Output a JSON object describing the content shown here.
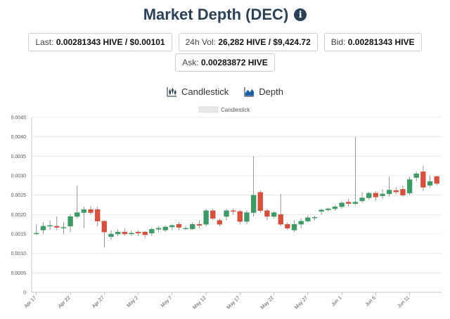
{
  "header": {
    "title": "Market Depth (DEC)",
    "info_icon": "info-circle-icon"
  },
  "stats": {
    "last_label": "Last:",
    "last_value": "0.00281343 HIVE / $0.00101",
    "vol_label": "24h Vol:",
    "vol_value": "26,282 HIVE / $9,424.72",
    "bid_label": "Bid:",
    "bid_value": "0.00281343 HIVE",
    "ask_label": "Ask:",
    "ask_value": "0.00283872 HIVE"
  },
  "chart_tabs": [
    {
      "label": "Candlestick",
      "icon": "candlestick-chart-icon"
    },
    {
      "label": "Depth",
      "icon": "area-chart-icon"
    }
  ],
  "colors": {
    "up": "#3e9a64",
    "down": "#d5503d",
    "grid": "#e6e6e6",
    "title": "#2d4156"
  },
  "chart_data": {
    "type": "candlestick",
    "legend": "Candlestick",
    "ylim": [
      0,
      0.0045
    ],
    "y_ticks": [
      "0",
      "0.0005",
      "0.0010",
      "0.0015",
      "0.0020",
      "0.0025",
      "0.0030",
      "0.0035",
      "0.0040",
      "0.0045"
    ],
    "x_ticks": [
      "Apr 17",
      "Apr 22",
      "Apr 27",
      "May 2",
      "May 7",
      "May 12",
      "May 17",
      "May 22",
      "May 27",
      "Jun 1",
      "Jun 6",
      "Jun 11"
    ],
    "candles": [
      {
        "o": 0.00152,
        "c": 0.00152,
        "h": 0.00175,
        "l": 0.00148
      },
      {
        "o": 0.0016,
        "c": 0.0017,
        "h": 0.0018,
        "l": 0.0015
      },
      {
        "o": 0.0017,
        "c": 0.00172,
        "h": 0.00185,
        "l": 0.0016
      },
      {
        "o": 0.0017,
        "c": 0.00167,
        "h": 0.00195,
        "l": 0.0016
      },
      {
        "o": 0.00167,
        "c": 0.00167,
        "h": 0.0018,
        "l": 0.0015
      },
      {
        "o": 0.0017,
        "c": 0.00195,
        "h": 0.002,
        "l": 0.00155
      },
      {
        "o": 0.00195,
        "c": 0.00205,
        "h": 0.00275,
        "l": 0.0019
      },
      {
        "o": 0.00205,
        "c": 0.00213,
        "h": 0.0022,
        "l": 0.00165
      },
      {
        "o": 0.00213,
        "c": 0.00205,
        "h": 0.00222,
        "l": 0.002
      },
      {
        "o": 0.00213,
        "c": 0.00183,
        "h": 0.0022,
        "l": 0.0017
      },
      {
        "o": 0.00183,
        "c": 0.00155,
        "h": 0.00185,
        "l": 0.00115
      },
      {
        "o": 0.00143,
        "c": 0.0015,
        "h": 0.0016,
        "l": 0.00135
      },
      {
        "o": 0.0015,
        "c": 0.00155,
        "h": 0.00162,
        "l": 0.00145
      },
      {
        "o": 0.00155,
        "c": 0.0015,
        "h": 0.00165,
        "l": 0.00145
      },
      {
        "o": 0.0015,
        "c": 0.00152,
        "h": 0.0016,
        "l": 0.00145
      },
      {
        "o": 0.00155,
        "c": 0.00152,
        "h": 0.0016,
        "l": 0.00145
      },
      {
        "o": 0.00155,
        "c": 0.00148,
        "h": 0.00158,
        "l": 0.0014
      },
      {
        "o": 0.00152,
        "c": 0.00162,
        "h": 0.00167,
        "l": 0.00145
      },
      {
        "o": 0.00162,
        "c": 0.00165,
        "h": 0.0017,
        "l": 0.00155
      },
      {
        "o": 0.0016,
        "c": 0.00168,
        "h": 0.00172,
        "l": 0.00155
      },
      {
        "o": 0.00168,
        "c": 0.00172,
        "h": 0.00175,
        "l": 0.0016
      },
      {
        "o": 0.00175,
        "c": 0.00167,
        "h": 0.0018,
        "l": 0.0016
      },
      {
        "o": 0.00165,
        "c": 0.00165,
        "h": 0.0017,
        "l": 0.0016
      },
      {
        "o": 0.00163,
        "c": 0.00175,
        "h": 0.0018,
        "l": 0.0016
      },
      {
        "o": 0.00175,
        "c": 0.00172,
        "h": 0.00185,
        "l": 0.00165
      },
      {
        "o": 0.00175,
        "c": 0.0021,
        "h": 0.00215,
        "l": 0.0017
      },
      {
        "o": 0.0021,
        "c": 0.0019,
        "h": 0.00215,
        "l": 0.00185
      },
      {
        "o": 0.00185,
        "c": 0.00175,
        "h": 0.0019,
        "l": 0.0017
      },
      {
        "o": 0.00195,
        "c": 0.0021,
        "h": 0.00215,
        "l": 0.00185
      },
      {
        "o": 0.0021,
        "c": 0.00208,
        "h": 0.00215,
        "l": 0.002
      },
      {
        "o": 0.00208,
        "c": 0.00182,
        "h": 0.00212,
        "l": 0.00175
      },
      {
        "o": 0.00182,
        "c": 0.00205,
        "h": 0.0021,
        "l": 0.00175
      },
      {
        "o": 0.00205,
        "c": 0.0025,
        "h": 0.0035,
        "l": 0.00195
      },
      {
        "o": 0.00257,
        "c": 0.0021,
        "h": 0.00262,
        "l": 0.00205
      },
      {
        "o": 0.0021,
        "c": 0.00195,
        "h": 0.00215,
        "l": 0.00185
      },
      {
        "o": 0.00195,
        "c": 0.00205,
        "h": 0.00208,
        "l": 0.0019
      },
      {
        "o": 0.002,
        "c": 0.00175,
        "h": 0.00253,
        "l": 0.0017
      },
      {
        "o": 0.00175,
        "c": 0.00165,
        "h": 0.0018,
        "l": 0.0016
      },
      {
        "o": 0.0016,
        "c": 0.00175,
        "h": 0.00185,
        "l": 0.00155
      },
      {
        "o": 0.00175,
        "c": 0.00183,
        "h": 0.0019,
        "l": 0.00165
      },
      {
        "o": 0.00183,
        "c": 0.00192,
        "h": 0.00198,
        "l": 0.0018
      },
      {
        "o": 0.00192,
        "c": 0.00193,
        "h": 0.00197,
        "l": 0.00185
      },
      {
        "o": 0.00208,
        "c": 0.00212,
        "h": 0.00215,
        "l": 0.002
      },
      {
        "o": 0.00212,
        "c": 0.00215,
        "h": 0.00218,
        "l": 0.00208
      },
      {
        "o": 0.00215,
        "c": 0.0022,
        "h": 0.00225,
        "l": 0.0021
      },
      {
        "o": 0.0022,
        "c": 0.0023,
        "h": 0.00235,
        "l": 0.00215
      },
      {
        "o": 0.00232,
        "c": 0.00228,
        "h": 0.0024,
        "l": 0.0022
      },
      {
        "o": 0.00228,
        "c": 0.00232,
        "h": 0.004,
        "l": 0.00225
      },
      {
        "o": 0.00235,
        "c": 0.00243,
        "h": 0.00258,
        "l": 0.0023
      },
      {
        "o": 0.00243,
        "c": 0.00255,
        "h": 0.00258,
        "l": 0.00238
      },
      {
        "o": 0.00255,
        "c": 0.00245,
        "h": 0.0026,
        "l": 0.00235
      },
      {
        "o": 0.00248,
        "c": 0.00253,
        "h": 0.00265,
        "l": 0.0024
      },
      {
        "o": 0.00253,
        "c": 0.00263,
        "h": 0.00298,
        "l": 0.00245
      },
      {
        "o": 0.00262,
        "c": 0.00258,
        "h": 0.0027,
        "l": 0.00252
      },
      {
        "o": 0.00265,
        "c": 0.0025,
        "h": 0.00275,
        "l": 0.00245
      },
      {
        "o": 0.00255,
        "c": 0.0029,
        "h": 0.00298,
        "l": 0.0025
      },
      {
        "o": 0.00295,
        "c": 0.00305,
        "h": 0.0031,
        "l": 0.00285
      },
      {
        "o": 0.0031,
        "c": 0.0027,
        "h": 0.00325,
        "l": 0.0026
      },
      {
        "o": 0.00275,
        "c": 0.00285,
        "h": 0.003,
        "l": 0.0027
      },
      {
        "o": 0.00298,
        "c": 0.0028,
        "h": 0.003,
        "l": 0.00275
      }
    ]
  }
}
